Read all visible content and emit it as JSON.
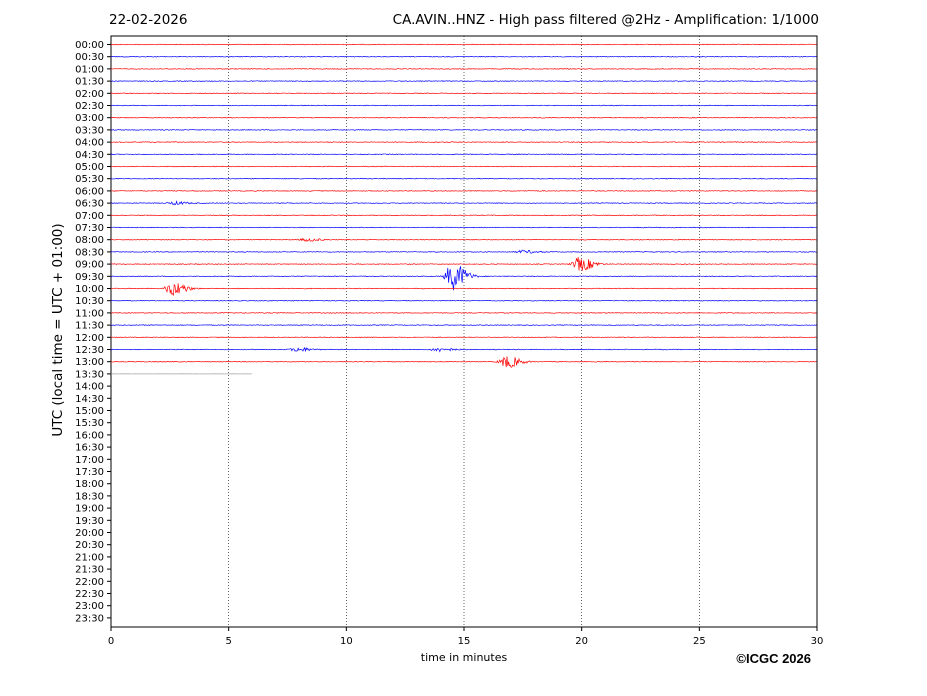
{
  "header": {
    "date": "22-02-2026",
    "title": "CA.AVIN..HNZ - High pass filtered @2Hz - Amplification: 1/1000"
  },
  "footer": {
    "copyright": "©ICGC 2026"
  },
  "chart_data": {
    "type": "line",
    "title": "CA.AVIN..HNZ - High pass filtered @2Hz - Amplification: 1/1000",
    "xlabel": "time in minutes",
    "ylabel": "UTC (local time = UTC + 01:00)",
    "xlim": [
      0,
      30
    ],
    "x_ticks": [
      0,
      5,
      10,
      15,
      20,
      25,
      30
    ],
    "x_tick_labels": [
      "0",
      "5",
      "10",
      "15",
      "20",
      "25",
      "30"
    ],
    "vertical_grid": "dotted",
    "row_labels": [
      "00:00",
      "00:30",
      "01:00",
      "01:30",
      "02:00",
      "02:30",
      "03:00",
      "03:30",
      "04:00",
      "04:30",
      "05:00",
      "05:30",
      "06:00",
      "06:30",
      "07:00",
      "07:30",
      "08:00",
      "08:30",
      "09:00",
      "09:30",
      "10:00",
      "10:30",
      "11:00",
      "11:30",
      "12:00",
      "12:30",
      "13:00",
      "13:30",
      "14:00",
      "14:30",
      "15:00",
      "15:30",
      "16:00",
      "16:30",
      "17:00",
      "17:30",
      "18:00",
      "18:30",
      "19:00",
      "19:30",
      "20:00",
      "20:30",
      "21:00",
      "21:30",
      "22:00",
      "22:30",
      "23:00",
      "23:30"
    ],
    "trace_colors": [
      "#ff0000",
      "#0000ff"
    ],
    "last_row_color": "#9a9a9a",
    "rows_recorded": 28,
    "last_row_end_minute": 6,
    "events": [
      {
        "row": "06:30",
        "minute": 2.7,
        "amplitude": 1.5
      },
      {
        "row": "08:00",
        "minute": 8.3,
        "amplitude": 1.5
      },
      {
        "row": "08:30",
        "minute": 17.5,
        "amplitude": 1.5
      },
      {
        "row": "09:00",
        "minute": 19.9,
        "amplitude": 7
      },
      {
        "row": "09:30",
        "minute": 14.5,
        "amplitude": 14
      },
      {
        "row": "10:00",
        "minute": 2.6,
        "amplitude": 7
      },
      {
        "row": "12:30",
        "minute": 7.9,
        "amplitude": 2
      },
      {
        "row": "12:30",
        "minute": 13.9,
        "amplitude": 2
      },
      {
        "row": "13:00",
        "minute": 16.8,
        "amplitude": 6
      }
    ]
  }
}
